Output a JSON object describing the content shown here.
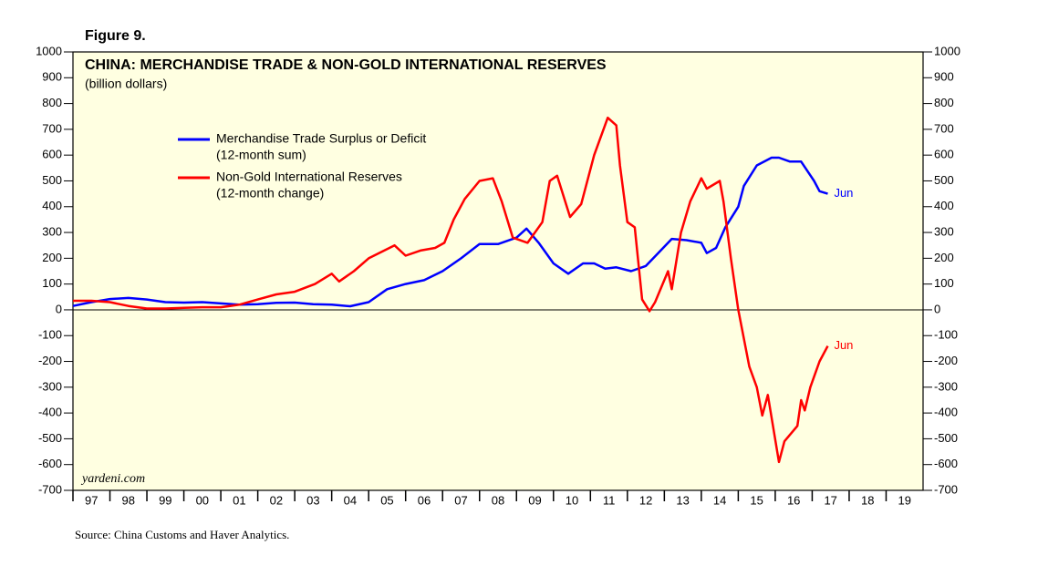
{
  "chart_data": {
    "type": "line",
    "figure_label": "Figure 9.",
    "title": "CHINA: MERCHANDISE TRADE & NON-GOLD INTERNATIONAL RESERVES",
    "subtitle": "(billion dollars)",
    "watermark": "yardeni.com",
    "source": "Source: China Customs and Haver Analytics.",
    "xlim": [
      1997,
      2020
    ],
    "xticks": [
      {
        "value": 1997,
        "label": "97"
      },
      {
        "value": 1998,
        "label": "98"
      },
      {
        "value": 1999,
        "label": "99"
      },
      {
        "value": 2000,
        "label": "00"
      },
      {
        "value": 2001,
        "label": "01"
      },
      {
        "value": 2002,
        "label": "02"
      },
      {
        "value": 2003,
        "label": "03"
      },
      {
        "value": 2004,
        "label": "04"
      },
      {
        "value": 2005,
        "label": "05"
      },
      {
        "value": 2006,
        "label": "06"
      },
      {
        "value": 2007,
        "label": "07"
      },
      {
        "value": 2008,
        "label": "08"
      },
      {
        "value": 2009,
        "label": "09"
      },
      {
        "value": 2010,
        "label": "10"
      },
      {
        "value": 2011,
        "label": "11"
      },
      {
        "value": 2012,
        "label": "12"
      },
      {
        "value": 2013,
        "label": "13"
      },
      {
        "value": 2014,
        "label": "14"
      },
      {
        "value": 2015,
        "label": "15"
      },
      {
        "value": 2016,
        "label": "16"
      },
      {
        "value": 2017,
        "label": "17"
      },
      {
        "value": 2018,
        "label": "18"
      },
      {
        "value": 2019,
        "label": "19"
      }
    ],
    "ylim": [
      -700,
      1000
    ],
    "yticks": [
      1000,
      900,
      800,
      700,
      600,
      500,
      400,
      300,
      200,
      100,
      0,
      -100,
      -200,
      -300,
      -400,
      -500,
      -600,
      -700
    ],
    "series": [
      {
        "name": "Merchandise Trade Surplus or Deficit",
        "subname": "(12-month sum)",
        "color": "#0000ff",
        "end_label": "Jun",
        "x": [
          1997.0,
          1997.5,
          1998.0,
          1998.5,
          1999.0,
          1999.5,
          2000.0,
          2000.5,
          2001.0,
          2001.5,
          2002.0,
          2002.5,
          2003.0,
          2003.5,
          2004.0,
          2004.5,
          2005.0,
          2005.5,
          2006.0,
          2006.5,
          2007.0,
          2007.5,
          2008.0,
          2008.5,
          2009.0,
          2009.27,
          2009.6,
          2010.0,
          2010.4,
          2010.8,
          2011.1,
          2011.4,
          2011.7,
          2012.1,
          2012.5,
          2012.9,
          2013.2,
          2013.6,
          2014.0,
          2014.15,
          2014.4,
          2014.65,
          2015.0,
          2015.15,
          2015.5,
          2015.9,
          2016.1,
          2016.4,
          2016.7,
          2017.05,
          2017.2,
          2017.42
        ],
        "values": [
          15,
          30,
          42,
          46,
          40,
          30,
          28,
          30,
          25,
          20,
          22,
          27,
          28,
          22,
          20,
          14,
          30,
          80,
          100,
          115,
          150,
          200,
          255,
          255,
          280,
          315,
          260,
          180,
          140,
          180,
          180,
          160,
          165,
          150,
          170,
          230,
          275,
          270,
          260,
          220,
          240,
          320,
          400,
          480,
          560,
          590,
          590,
          575,
          575,
          500,
          460,
          450
        ]
      },
      {
        "name": "Non-Gold International Reserves",
        "subname": "(12-month change)",
        "color": "#ff0000",
        "end_label": "Jun",
        "x": [
          1997.0,
          1997.5,
          1998.0,
          1998.5,
          1999.0,
          1999.5,
          2000.0,
          2000.5,
          2001.0,
          2001.5,
          2002.0,
          2002.5,
          2003.0,
          2003.55,
          2004.0,
          2004.2,
          2004.6,
          2005.0,
          2005.7,
          2006.0,
          2006.4,
          2006.8,
          2007.05,
          2007.3,
          2007.6,
          2008.0,
          2008.36,
          2008.6,
          2008.9,
          2009.3,
          2009.7,
          2009.9,
          2010.1,
          2010.45,
          2010.75,
          2011.1,
          2011.47,
          2011.7,
          2011.8,
          2012.0,
          2012.2,
          2012.4,
          2012.6,
          2012.75,
          2013.1,
          2013.2,
          2013.45,
          2013.7,
          2014.0,
          2014.15,
          2014.5,
          2014.6,
          2014.8,
          2015.0,
          2015.3,
          2015.5,
          2015.65,
          2015.8,
          2016.1,
          2016.25,
          2016.6,
          2016.7,
          2016.8,
          2016.95,
          2017.2,
          2017.42
        ],
        "values": [
          35,
          35,
          30,
          15,
          5,
          5,
          8,
          10,
          10,
          20,
          40,
          60,
          70,
          100,
          140,
          110,
          150,
          200,
          250,
          210,
          230,
          240,
          260,
          350,
          430,
          500,
          510,
          420,
          280,
          260,
          340,
          500,
          520,
          360,
          410,
          600,
          745,
          715,
          560,
          340,
          320,
          40,
          -5,
          30,
          150,
          80,
          300,
          420,
          510,
          470,
          500,
          420,
          200,
          0,
          -220,
          -300,
          -410,
          -330,
          -590,
          -510,
          -450,
          -350,
          -390,
          -300,
          -200,
          -140
        ]
      }
    ]
  }
}
